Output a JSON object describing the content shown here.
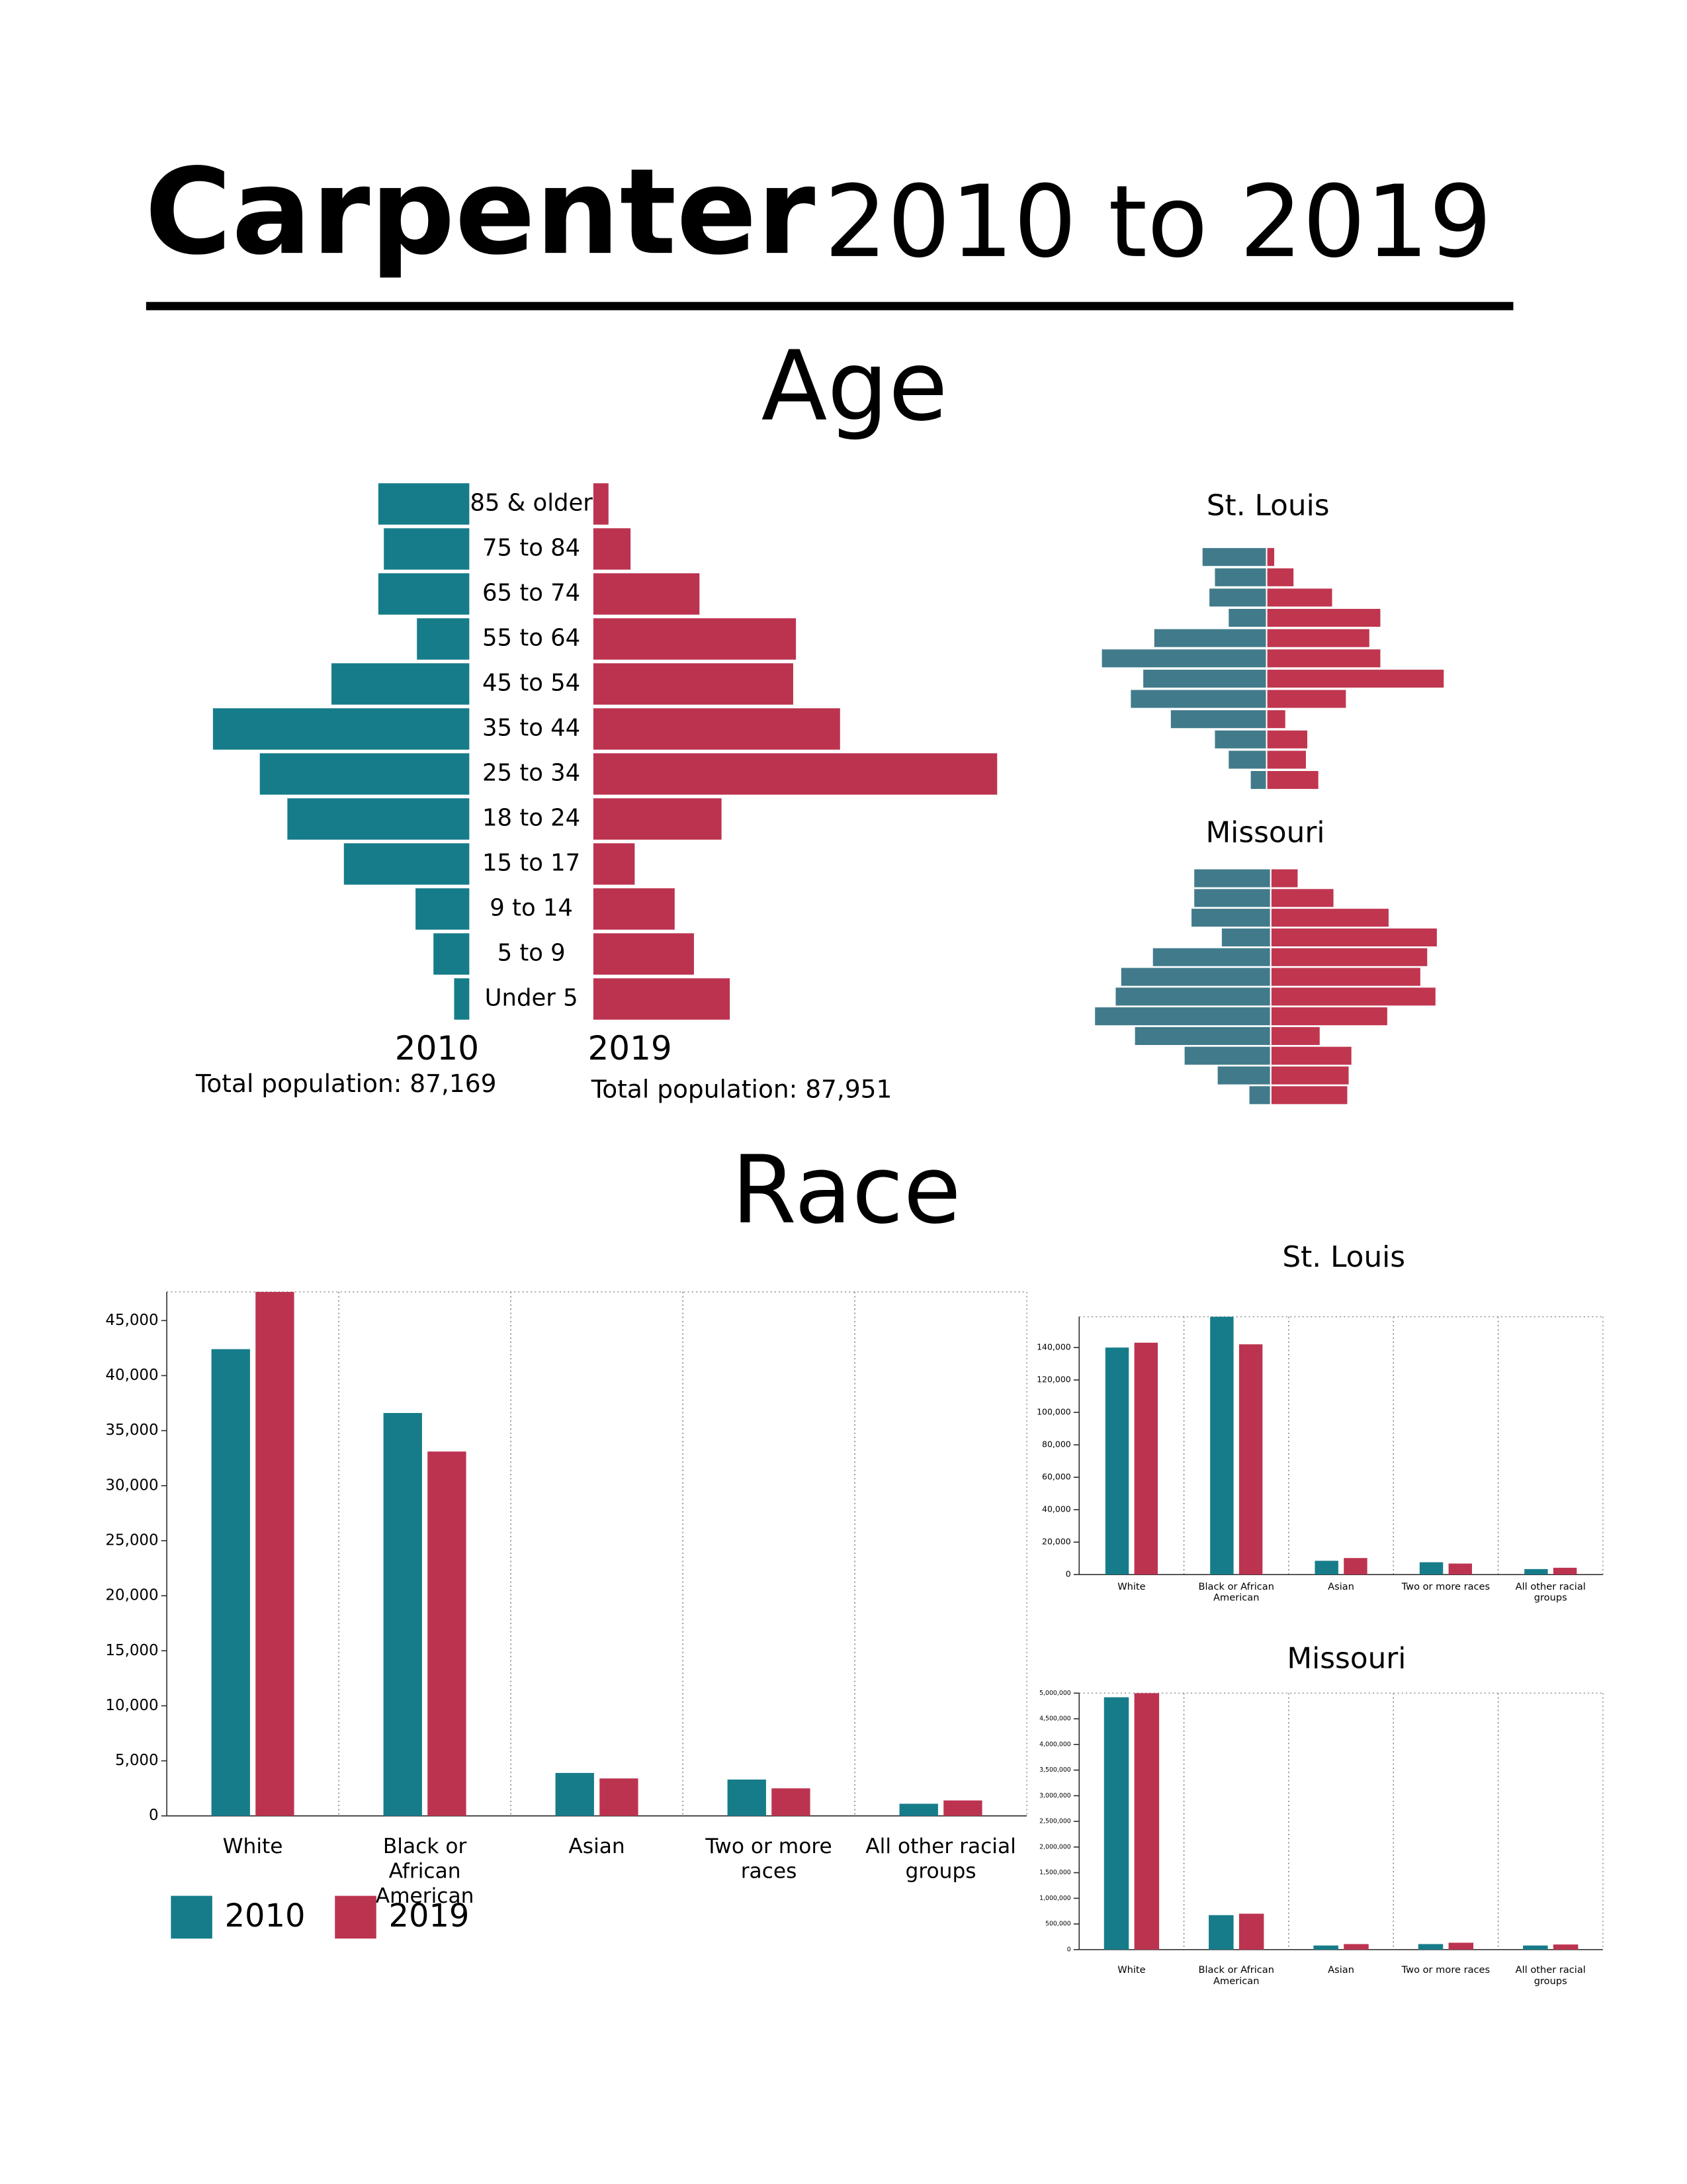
{
  "header": {
    "title_bold": "Carpenter",
    "title_rest": "2010 to 2019"
  },
  "sections": [
    "Age",
    "Race"
  ],
  "chart_data": [
    {
      "type": "pyramid",
      "categories": [
        "85 & older",
        "75 to 84",
        "65 to 74",
        "55 to 64",
        "45 to 54",
        "35 to 44",
        "25 to 34",
        "18 to 24",
        "15 to 17",
        "9 to 14",
        "5 to 9",
        "Under 5"
      ],
      "series": [
        {
          "name": "2010",
          "color": "#167c8a",
          "values": [
            67,
            63,
            67,
            39,
            101,
            187,
            153,
            133,
            92,
            40,
            27,
            12
          ]
        },
        {
          "name": "2019",
          "color": "#bc3350",
          "values": [
            12,
            28,
            78,
            148,
            146,
            180,
            294,
            94,
            31,
            60,
            74,
            100
          ]
        }
      ],
      "annotations": [
        "Total population: 87,169",
        "Total population: 87,951"
      ]
    },
    {
      "type": "pyramid",
      "title": "St. Louis",
      "series": [
        {
          "color": "#417b8b",
          "values": [
            47,
            38,
            42,
            28,
            82,
            120,
            90,
            99,
            70,
            38,
            28,
            12
          ]
        },
        {
          "color": "#c0364f",
          "values": [
            6,
            20,
            48,
            83,
            75,
            83,
            129,
            58,
            14,
            30,
            29,
            38
          ]
        }
      ]
    },
    {
      "type": "pyramid",
      "title": "Missouri",
      "series": [
        {
          "color": "#417b8b",
          "values": [
            56,
            56,
            58,
            36,
            86,
            109,
            113,
            128,
            99,
            63,
            39,
            16
          ]
        },
        {
          "color": "#c0364f",
          "values": [
            20,
            46,
            86,
            121,
            114,
            109,
            120,
            85,
            36,
            59,
            57,
            56
          ]
        }
      ]
    },
    {
      "type": "bar",
      "categories": [
        "White",
        "Black or African American",
        "Asian",
        "Two or more races",
        "All other racial groups"
      ],
      "series": [
        {
          "name": "2010",
          "color": "#167c8a",
          "values": [
            42400,
            36600,
            3900,
            3300,
            1100
          ]
        },
        {
          "name": "2019",
          "color": "#bc3350",
          "values": [
            47600,
            33100,
            3400,
            2500,
            1400
          ]
        }
      ],
      "ylim": [
        0,
        47600
      ],
      "yticks": [
        0,
        {
          "value": 5000,
          "label": "5,000"
        },
        {
          "value": 10000,
          "label": "10,000"
        },
        {
          "value": 15000,
          "label": "15,000"
        },
        {
          "value": 20000,
          "label": "20,000"
        },
        {
          "value": 25000,
          "label": "25,000"
        },
        {
          "value": 30000,
          "label": "30,000"
        },
        {
          "value": 35000,
          "label": "35,000"
        },
        {
          "value": 40000,
          "label": "40,000"
        },
        {
          "value": 45000,
          "label": "45,000"
        }
      ]
    },
    {
      "type": "bar",
      "title": "St. Louis",
      "categories": [
        "White",
        "Black or African American",
        "Asian",
        "Two or more races",
        "All other racial groups"
      ],
      "series": [
        {
          "color": "#167c8a",
          "values": [
            140000,
            159000,
            8500,
            7600,
            3400
          ]
        },
        {
          "color": "#bc3350",
          "values": [
            143000,
            142000,
            10200,
            6800,
            4200
          ]
        }
      ],
      "ylim": [
        0,
        159000
      ],
      "yticks": [
        0,
        {
          "value": 20000,
          "label": "20,000"
        },
        {
          "value": 40000,
          "label": "40,000"
        },
        {
          "value": 60000,
          "label": "60,000"
        },
        {
          "value": 80000,
          "label": "80,000"
        },
        {
          "value": 100000,
          "label": "100,000"
        },
        {
          "value": 120000,
          "label": "120,000"
        },
        {
          "value": 140000,
          "label": "140,000"
        }
      ]
    },
    {
      "type": "bar",
      "title": "Missouri",
      "categories": [
        "White",
        "Black or African American",
        "Asian",
        "Two or more races",
        "All other racial groups"
      ],
      "series": [
        {
          "color": "#167c8a",
          "values": [
            4920000,
            672000,
            80000,
            108000,
            80000
          ]
        },
        {
          "color": "#bc3350",
          "values": [
            5000000,
            700000,
            108000,
            134000,
            100000
          ]
        }
      ],
      "ylim": [
        0,
        5000000
      ],
      "yticks": [
        0,
        {
          "value": 500000,
          "label": "500,000"
        },
        {
          "value": 1000000,
          "label": "1,000,000"
        },
        {
          "value": 1500000,
          "label": "1,500,000"
        },
        {
          "value": 2000000,
          "label": "2,000,000"
        },
        {
          "value": 2500000,
          "label": "2,500,000"
        },
        {
          "value": 3000000,
          "label": "3,000,000"
        },
        {
          "value": 3500000,
          "label": "3,500,000"
        },
        {
          "value": 4000000,
          "label": "4,000,000"
        },
        {
          "value": 4500000,
          "label": "4,500,000"
        },
        {
          "value": 5000000,
          "label": "5,000,000"
        }
      ]
    }
  ]
}
